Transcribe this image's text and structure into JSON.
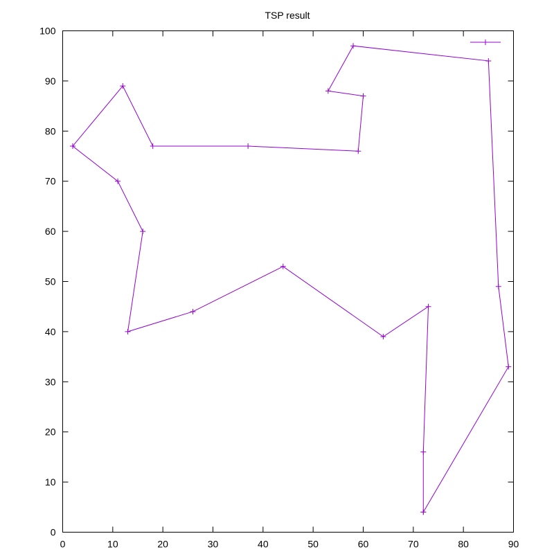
{
  "chart_data": {
    "type": "line",
    "title": "TSP result",
    "xlabel": "",
    "ylabel": "",
    "xlim": [
      0,
      90
    ],
    "ylim": [
      0,
      100
    ],
    "xticks": [
      0,
      10,
      20,
      30,
      40,
      50,
      60,
      70,
      80,
      90
    ],
    "yticks": [
      0,
      10,
      20,
      30,
      40,
      50,
      60,
      70,
      80,
      90,
      100
    ],
    "grid": false,
    "legend": "top-right",
    "series": [
      {
        "name": "",
        "color": "#9400d3",
        "marker": "plus",
        "x": [
          72,
          72,
          73,
          64,
          44,
          26,
          13,
          16,
          11,
          2,
          12,
          18,
          37,
          59,
          60,
          53,
          58,
          85,
          87,
          89,
          72
        ],
        "y": [
          4,
          16,
          45,
          39,
          53,
          44,
          40,
          60,
          70,
          77,
          89,
          77,
          77,
          76,
          87,
          88,
          97,
          94,
          49,
          33,
          4
        ]
      }
    ]
  }
}
